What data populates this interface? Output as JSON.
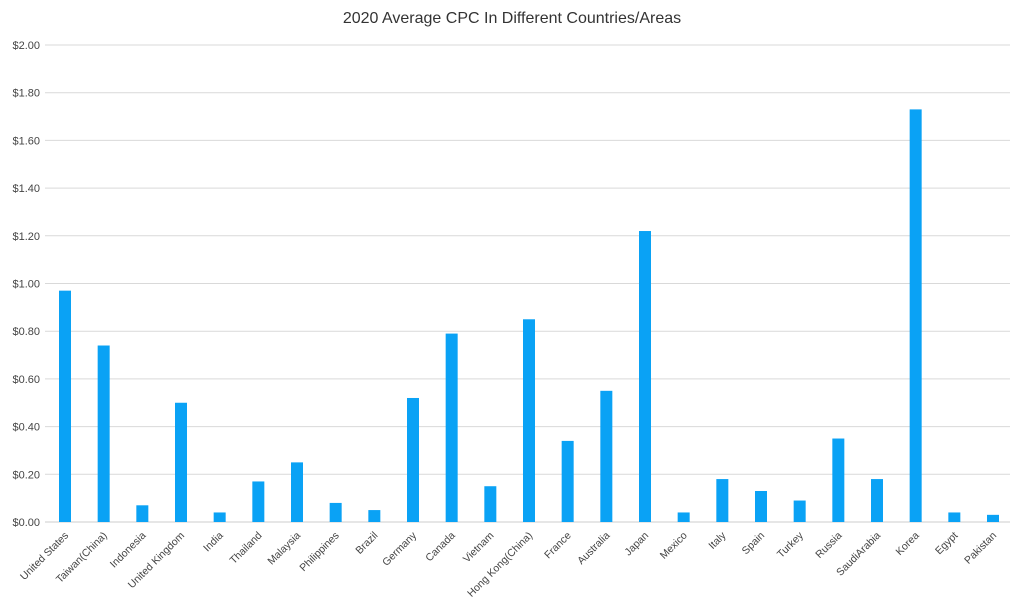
{
  "chart_data": {
    "type": "bar",
    "title": "2020 Average CPC In Different Countries/Areas",
    "xlabel": "",
    "ylabel": "",
    "ylim": [
      0,
      2
    ],
    "yticks": [
      "$0.00",
      "$0.20",
      "$0.40",
      "$0.60",
      "$0.80",
      "$1.00",
      "$1.20",
      "$1.40",
      "$1.60",
      "$1.80",
      "$2.00"
    ],
    "grid": true,
    "categories": [
      "United States",
      "Taiwan(China)",
      "Indonesia",
      "United Kingdom",
      "India",
      "Thailand",
      "Malaysia",
      "Philippines",
      "Brazil",
      "Germany",
      "Canada",
      "Vietnam",
      "Hong Kong(China)",
      "France",
      "Australia",
      "Japan",
      "Mexico",
      "Italy",
      "Spain",
      "Turkey",
      "Russia",
      "SaudiArabia",
      "Korea",
      "Egypt",
      "Pakistan"
    ],
    "values": [
      0.97,
      0.74,
      0.07,
      0.5,
      0.04,
      0.17,
      0.25,
      0.08,
      0.05,
      0.52,
      0.79,
      0.15,
      0.85,
      0.34,
      0.55,
      1.22,
      0.04,
      0.18,
      0.13,
      0.09,
      0.35,
      0.18,
      1.73,
      0.04,
      0.03
    ],
    "bar_color": "#0aa2f5"
  }
}
